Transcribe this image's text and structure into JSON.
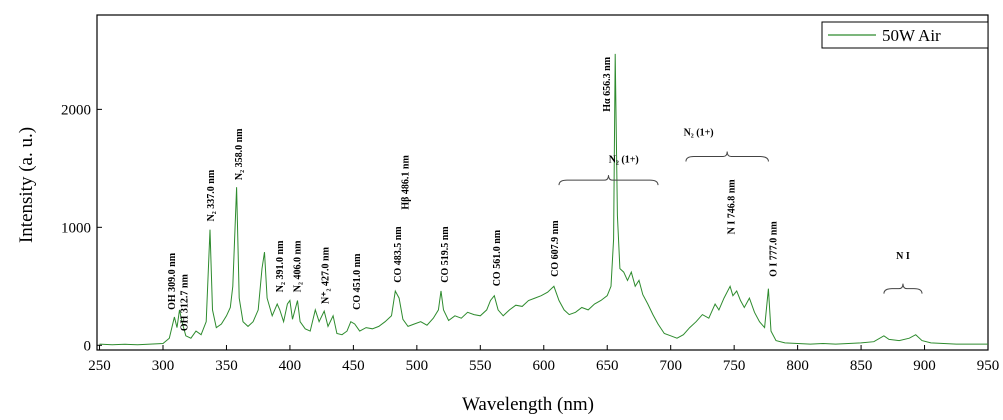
{
  "chart_data": {
    "type": "line",
    "xlabel": "Wavelength (nm)",
    "ylabel": "Intensity (a. u.)",
    "xlim": [
      248,
      950
    ],
    "ylim": [
      -40,
      2800
    ],
    "xticks": [
      250,
      300,
      350,
      400,
      450,
      500,
      550,
      600,
      650,
      700,
      750,
      800,
      850,
      900,
      950
    ],
    "yticks": [
      0,
      1000,
      2000
    ],
    "legend": "top-right",
    "series": [
      {
        "name": "50W Air",
        "color": "#2e8b2e",
        "x": [
          250,
          260,
          270,
          280,
          290,
          300,
          305,
          309,
          311,
          313,
          315,
          318,
          322,
          326,
          330,
          334,
          337,
          339,
          342,
          346,
          350,
          353,
          355,
          358,
          360,
          363,
          367,
          371,
          375,
          378,
          380,
          382,
          386,
          390,
          392,
          395,
          398,
          400,
          402,
          406,
          408,
          412,
          416,
          420,
          423,
          427,
          430,
          434,
          437,
          441,
          445,
          448,
          451,
          455,
          460,
          465,
          470,
          475,
          480,
          483,
          486,
          489,
          493,
          498,
          503,
          508,
          513,
          517,
          519,
          521,
          525,
          530,
          535,
          540,
          545,
          550,
          555,
          558,
          561,
          564,
          568,
          573,
          578,
          583,
          588,
          593,
          598,
          603,
          608,
          612,
          616,
          620,
          625,
          630,
          635,
          640,
          645,
          650,
          653,
          655,
          656.3,
          658,
          660,
          663,
          666,
          669,
          672,
          675,
          678,
          682,
          686,
          690,
          695,
          700,
          705,
          710,
          715,
          720,
          725,
          730,
          735,
          738,
          742,
          746.8,
          749,
          752,
          755,
          758,
          762,
          766,
          770,
          774,
          777,
          779,
          783,
          790,
          800,
          810,
          820,
          830,
          840,
          850,
          860,
          868,
          872,
          880,
          888,
          893,
          898,
          905,
          915,
          925,
          935,
          950
        ],
        "values": [
          10,
          5,
          8,
          5,
          10,
          15,
          60,
          240,
          150,
          300,
          200,
          80,
          60,
          120,
          90,
          200,
          980,
          300,
          150,
          180,
          250,
          320,
          500,
          1340,
          400,
          200,
          160,
          200,
          300,
          650,
          790,
          400,
          250,
          350,
          300,
          200,
          350,
          380,
          220,
          380,
          200,
          140,
          120,
          300,
          200,
          290,
          160,
          250,
          100,
          90,
          120,
          200,
          180,
          120,
          150,
          140,
          160,
          200,
          250,
          460,
          400,
          220,
          160,
          180,
          200,
          170,
          230,
          300,
          460,
          300,
          210,
          250,
          230,
          280,
          260,
          250,
          300,
          380,
          420,
          300,
          250,
          300,
          340,
          330,
          380,
          400,
          420,
          450,
          500,
          380,
          300,
          260,
          280,
          320,
          300,
          350,
          380,
          420,
          500,
          900,
          2470,
          1100,
          650,
          620,
          550,
          620,
          500,
          550,
          430,
          350,
          260,
          180,
          100,
          80,
          60,
          90,
          150,
          200,
          260,
          230,
          350,
          300,
          400,
          500,
          420,
          460,
          380,
          320,
          400,
          280,
          200,
          150,
          480,
          120,
          40,
          20,
          15,
          10,
          15,
          10,
          15,
          20,
          30,
          80,
          50,
          40,
          60,
          90,
          40,
          20,
          15,
          10,
          10,
          10
        ]
      }
    ],
    "annotations": [
      "OH 309.0 nm",
      "OH 312.7 nm",
      "N₂ 337.0 nm",
      "N₂ 358.0 nm",
      "N₂ 391.0 nm",
      "N₂ 406.0 nm",
      "N⁺₂ 427.0 nm",
      "CO 451.0 nm",
      "CO 483.5 nm",
      "Hβ 486.1 nm",
      "CO 519.5 nm",
      "CO 561.0 nm",
      "CO 607.9 nm",
      "Hα 656.3 nm",
      "N₂ (1+)",
      "N₂ (1+)",
      "N I 746.8 nm",
      "O I 777.0 nm",
      "N I"
    ]
  }
}
